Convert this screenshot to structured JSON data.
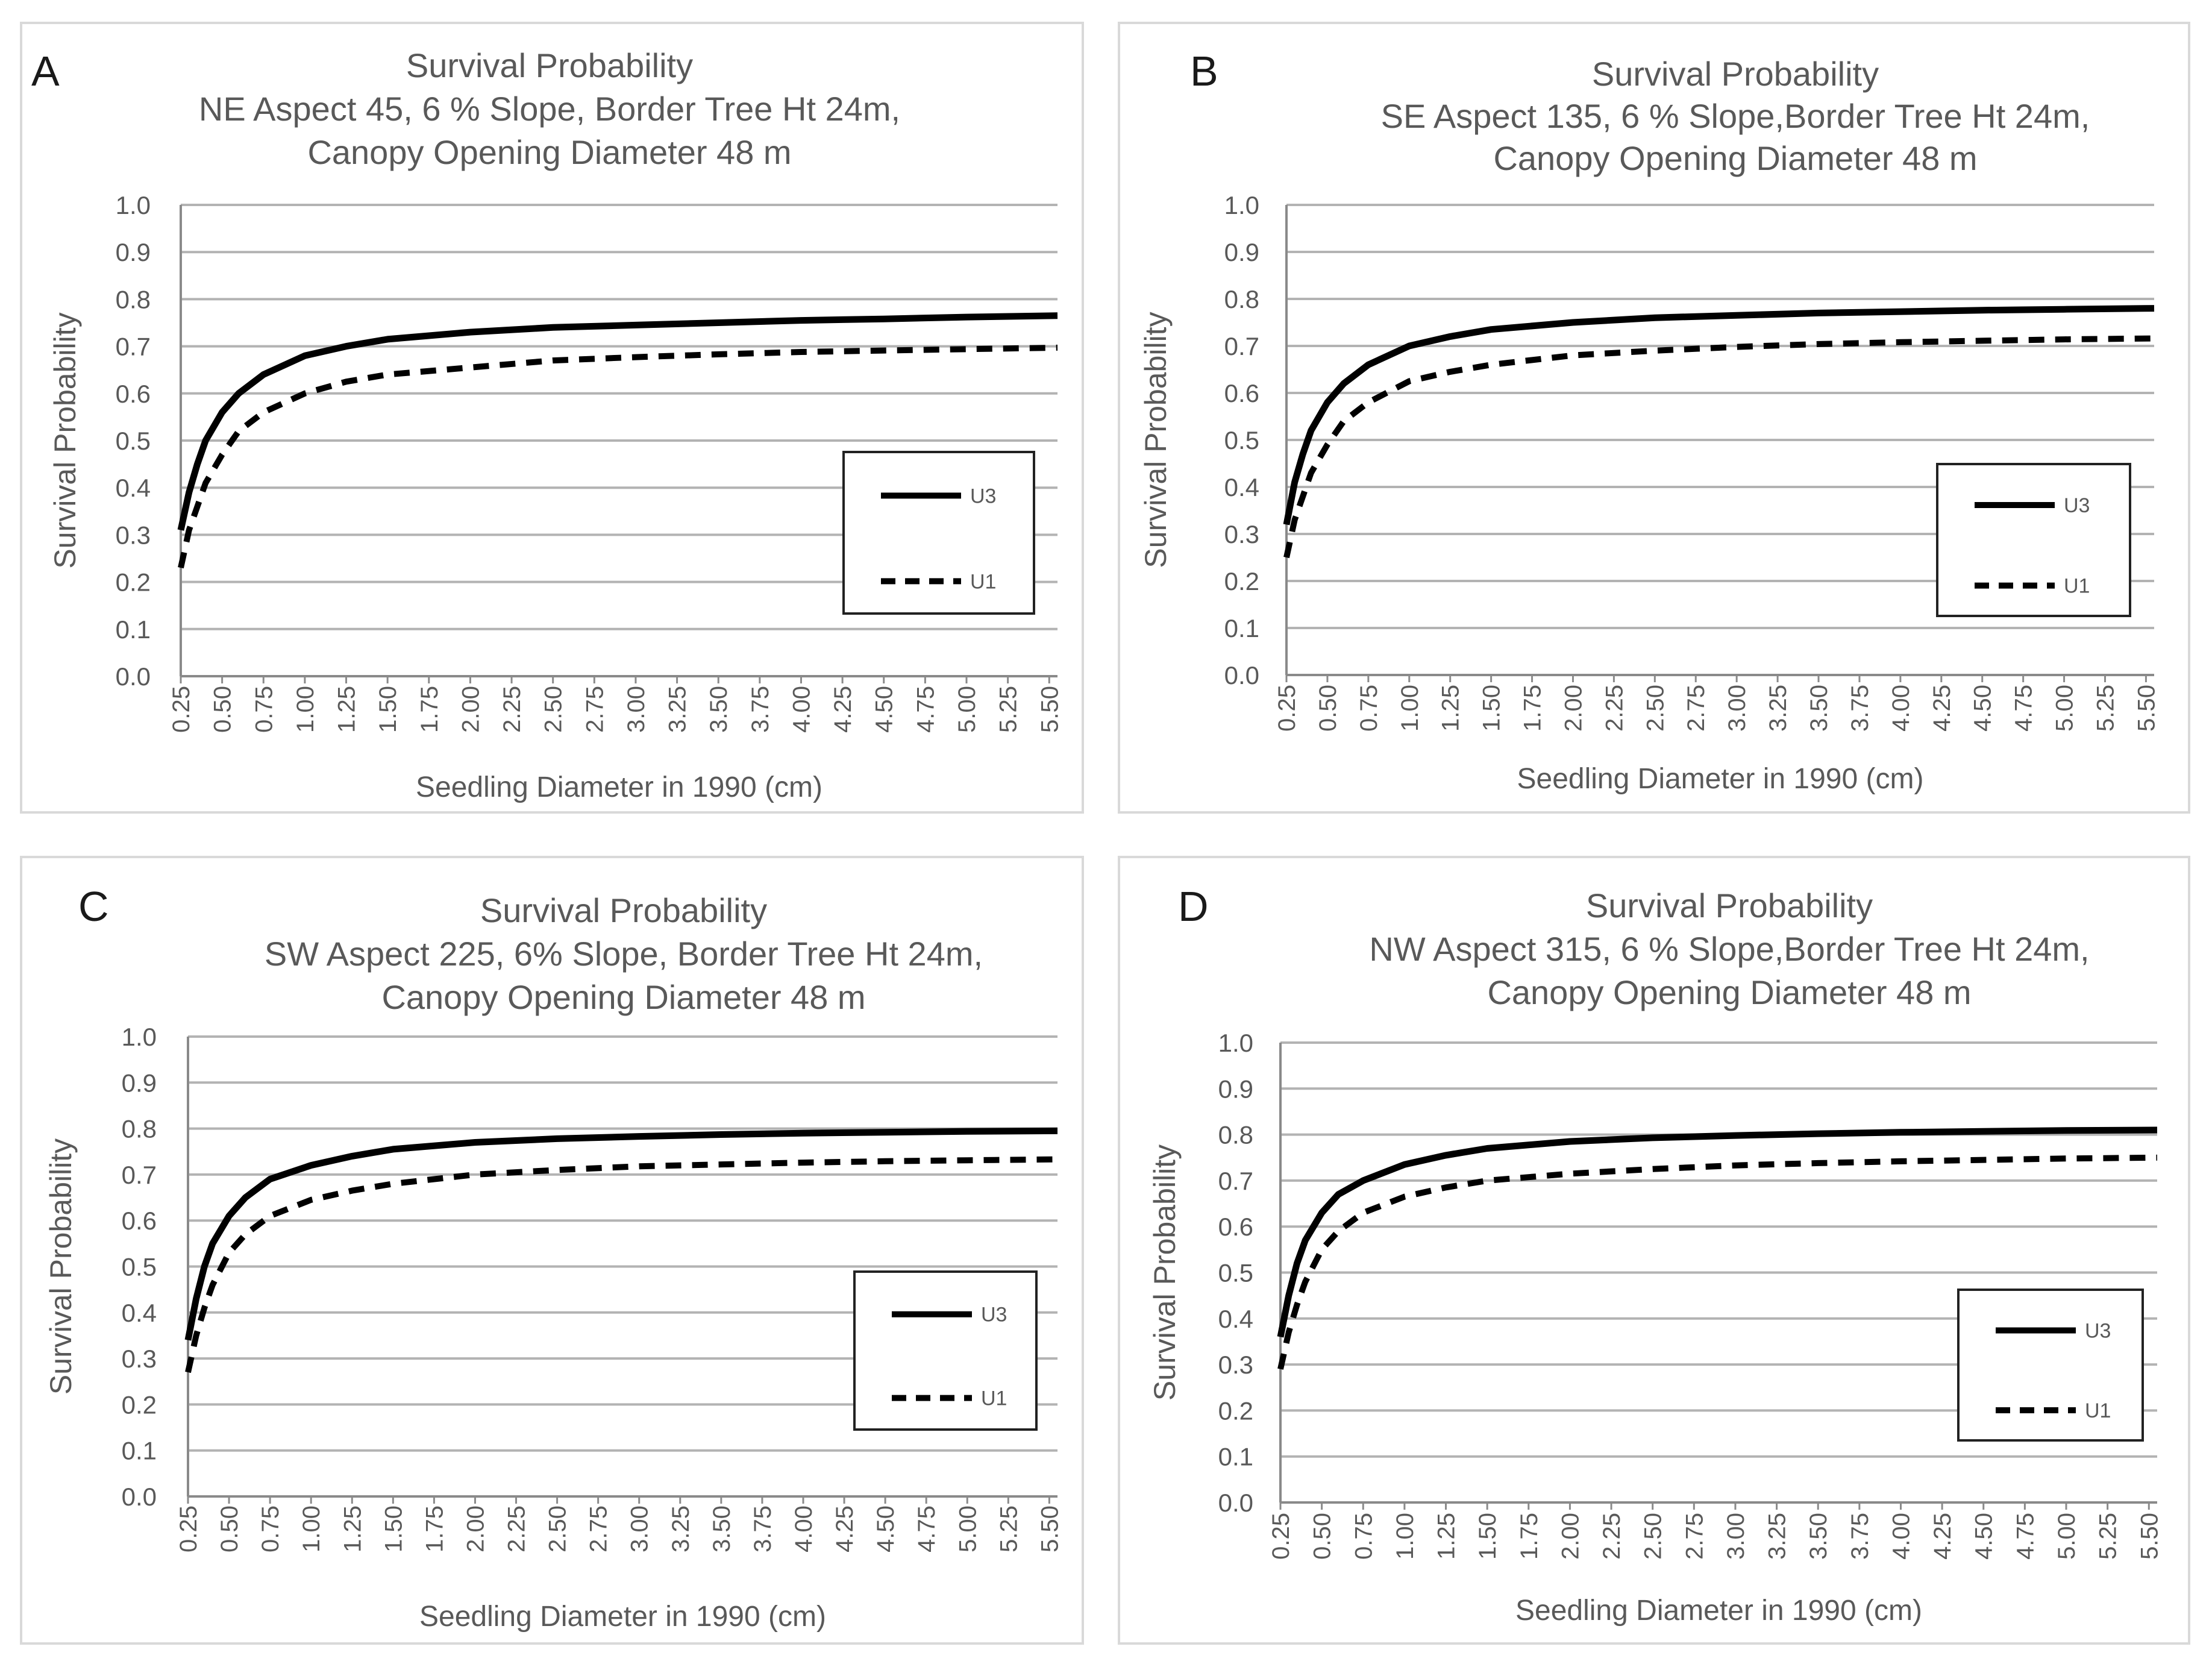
{
  "figure": {
    "ytick_labels": [
      "0.0",
      "0.1",
      "0.2",
      "0.3",
      "0.4",
      "0.5",
      "0.6",
      "0.7",
      "0.8",
      "0.9",
      "1.0"
    ],
    "xtick_labels": [
      "0.25",
      "0.50",
      "0.75",
      "1.00",
      "1.25",
      "1.50",
      "1.75",
      "2.00",
      "2.25",
      "2.50",
      "2.75",
      "3.00",
      "3.25",
      "3.50",
      "3.75",
      "4.00",
      "4.25",
      "4.50",
      "4.75",
      "5.00",
      "5.25",
      "5.50"
    ],
    "colors": {
      "line": "#000000",
      "grid": "#b3b3b3",
      "axis": "#8a8a8a",
      "text": "#595959",
      "frame": "#d9d9d9"
    }
  },
  "chart_data": [
    {
      "type": "line",
      "panel_label": "A",
      "title": [
        "Survival Probability",
        "NE Aspect 45, 6 % Slope, Border Tree Ht 24m,",
        "Canopy Opening Diameter 48 m"
      ],
      "xlabel": "Seedling Diameter in 1990 (cm)",
      "ylabel": "Survival Probability",
      "xlim": [
        0.25,
        5.55
      ],
      "ylim": [
        0,
        1
      ],
      "legend": "center-right",
      "series": [
        {
          "name": "U3",
          "style": "solid",
          "x": [
            0.25,
            0.3,
            0.35,
            0.4,
            0.5,
            0.6,
            0.75,
            1.0,
            1.25,
            1.5,
            2.0,
            2.5,
            3.0,
            3.5,
            4.0,
            4.5,
            5.0,
            5.55
          ],
          "y": [
            0.31,
            0.39,
            0.45,
            0.5,
            0.56,
            0.6,
            0.64,
            0.68,
            0.7,
            0.715,
            0.73,
            0.74,
            0.745,
            0.75,
            0.755,
            0.758,
            0.762,
            0.765
          ]
        },
        {
          "name": "U1",
          "style": "dashed",
          "x": [
            0.25,
            0.3,
            0.35,
            0.4,
            0.5,
            0.6,
            0.75,
            1.0,
            1.25,
            1.5,
            2.0,
            2.5,
            3.0,
            3.5,
            4.0,
            4.5,
            5.0,
            5.55
          ],
          "y": [
            0.23,
            0.31,
            0.36,
            0.41,
            0.47,
            0.52,
            0.56,
            0.6,
            0.625,
            0.64,
            0.655,
            0.67,
            0.677,
            0.683,
            0.688,
            0.691,
            0.694,
            0.697
          ]
        }
      ]
    },
    {
      "type": "line",
      "panel_label": "B",
      "title": [
        "Survival Probability",
        "SE Aspect 135, 6 % Slope,Border Tree Ht 24m,",
        "Canopy Opening Diameter 48 m"
      ],
      "xlabel": "Seedling Diameter in 1990 (cm)",
      "ylabel": "Survival Probability",
      "xlim": [
        0.25,
        5.55
      ],
      "ylim": [
        0,
        1
      ],
      "legend": "center-right",
      "series": [
        {
          "name": "U3",
          "style": "solid",
          "x": [
            0.25,
            0.3,
            0.35,
            0.4,
            0.5,
            0.6,
            0.75,
            1.0,
            1.25,
            1.5,
            2.0,
            2.5,
            3.0,
            3.5,
            4.0,
            4.5,
            5.0,
            5.55
          ],
          "y": [
            0.32,
            0.41,
            0.47,
            0.52,
            0.58,
            0.62,
            0.66,
            0.7,
            0.72,
            0.735,
            0.75,
            0.76,
            0.765,
            0.77,
            0.773,
            0.776,
            0.778,
            0.78
          ]
        },
        {
          "name": "U1",
          "style": "dashed",
          "x": [
            0.25,
            0.3,
            0.35,
            0.4,
            0.5,
            0.6,
            0.75,
            1.0,
            1.25,
            1.5,
            2.0,
            2.5,
            3.0,
            3.5,
            4.0,
            4.5,
            5.0,
            5.55
          ],
          "y": [
            0.25,
            0.33,
            0.38,
            0.43,
            0.49,
            0.54,
            0.58,
            0.625,
            0.645,
            0.66,
            0.68,
            0.69,
            0.698,
            0.704,
            0.708,
            0.711,
            0.714,
            0.716
          ]
        }
      ]
    },
    {
      "type": "line",
      "panel_label": "C",
      "title": [
        "Survival Probability",
        "SW Aspect 225, 6% Slope, Border Tree Ht 24m,",
        "Canopy Opening Diameter 48 m"
      ],
      "xlabel": "Seedling Diameter in 1990 (cm)",
      "ylabel": "Survival Probability",
      "xlim": [
        0.25,
        5.55
      ],
      "ylim": [
        0,
        1
      ],
      "legend": "lower-right",
      "series": [
        {
          "name": "U3",
          "style": "solid",
          "x": [
            0.25,
            0.3,
            0.35,
            0.4,
            0.5,
            0.6,
            0.75,
            1.0,
            1.25,
            1.5,
            2.0,
            2.5,
            3.0,
            3.5,
            4.0,
            4.5,
            5.0,
            5.55
          ],
          "y": [
            0.34,
            0.43,
            0.5,
            0.55,
            0.61,
            0.65,
            0.69,
            0.72,
            0.74,
            0.755,
            0.77,
            0.778,
            0.783,
            0.787,
            0.79,
            0.792,
            0.794,
            0.795
          ]
        },
        {
          "name": "U1",
          "style": "dashed",
          "x": [
            0.25,
            0.3,
            0.35,
            0.4,
            0.5,
            0.6,
            0.75,
            1.0,
            1.25,
            1.5,
            2.0,
            2.5,
            3.0,
            3.5,
            4.0,
            4.5,
            5.0,
            5.55
          ],
          "y": [
            0.27,
            0.35,
            0.41,
            0.46,
            0.53,
            0.57,
            0.61,
            0.645,
            0.665,
            0.68,
            0.7,
            0.71,
            0.718,
            0.722,
            0.726,
            0.729,
            0.731,
            0.733
          ]
        }
      ]
    },
    {
      "type": "line",
      "panel_label": "D",
      "title": [
        "Survival Probability",
        "NW Aspect 315, 6 % Slope,Border Tree Ht 24m,",
        "Canopy Opening Diameter 48 m"
      ],
      "xlabel": "Seedling Diameter in 1990 (cm)",
      "ylabel": "Survival Probability",
      "xlim": [
        0.25,
        5.55
      ],
      "ylim": [
        0,
        1
      ],
      "legend": "lower-right",
      "series": [
        {
          "name": "U3",
          "style": "solid",
          "x": [
            0.25,
            0.3,
            0.35,
            0.4,
            0.5,
            0.6,
            0.75,
            1.0,
            1.25,
            1.5,
            2.0,
            2.5,
            3.0,
            3.5,
            4.0,
            4.5,
            5.0,
            5.55
          ],
          "y": [
            0.36,
            0.45,
            0.52,
            0.57,
            0.63,
            0.67,
            0.7,
            0.735,
            0.755,
            0.77,
            0.785,
            0.793,
            0.798,
            0.802,
            0.805,
            0.807,
            0.809,
            0.81
          ]
        },
        {
          "name": "U1",
          "style": "dashed",
          "x": [
            0.25,
            0.3,
            0.35,
            0.4,
            0.5,
            0.6,
            0.75,
            1.0,
            1.25,
            1.5,
            2.0,
            2.5,
            3.0,
            3.5,
            4.0,
            4.5,
            5.0,
            5.55
          ],
          "y": [
            0.29,
            0.37,
            0.43,
            0.48,
            0.55,
            0.59,
            0.63,
            0.665,
            0.685,
            0.7,
            0.715,
            0.725,
            0.733,
            0.738,
            0.742,
            0.745,
            0.748,
            0.75
          ]
        }
      ]
    }
  ]
}
